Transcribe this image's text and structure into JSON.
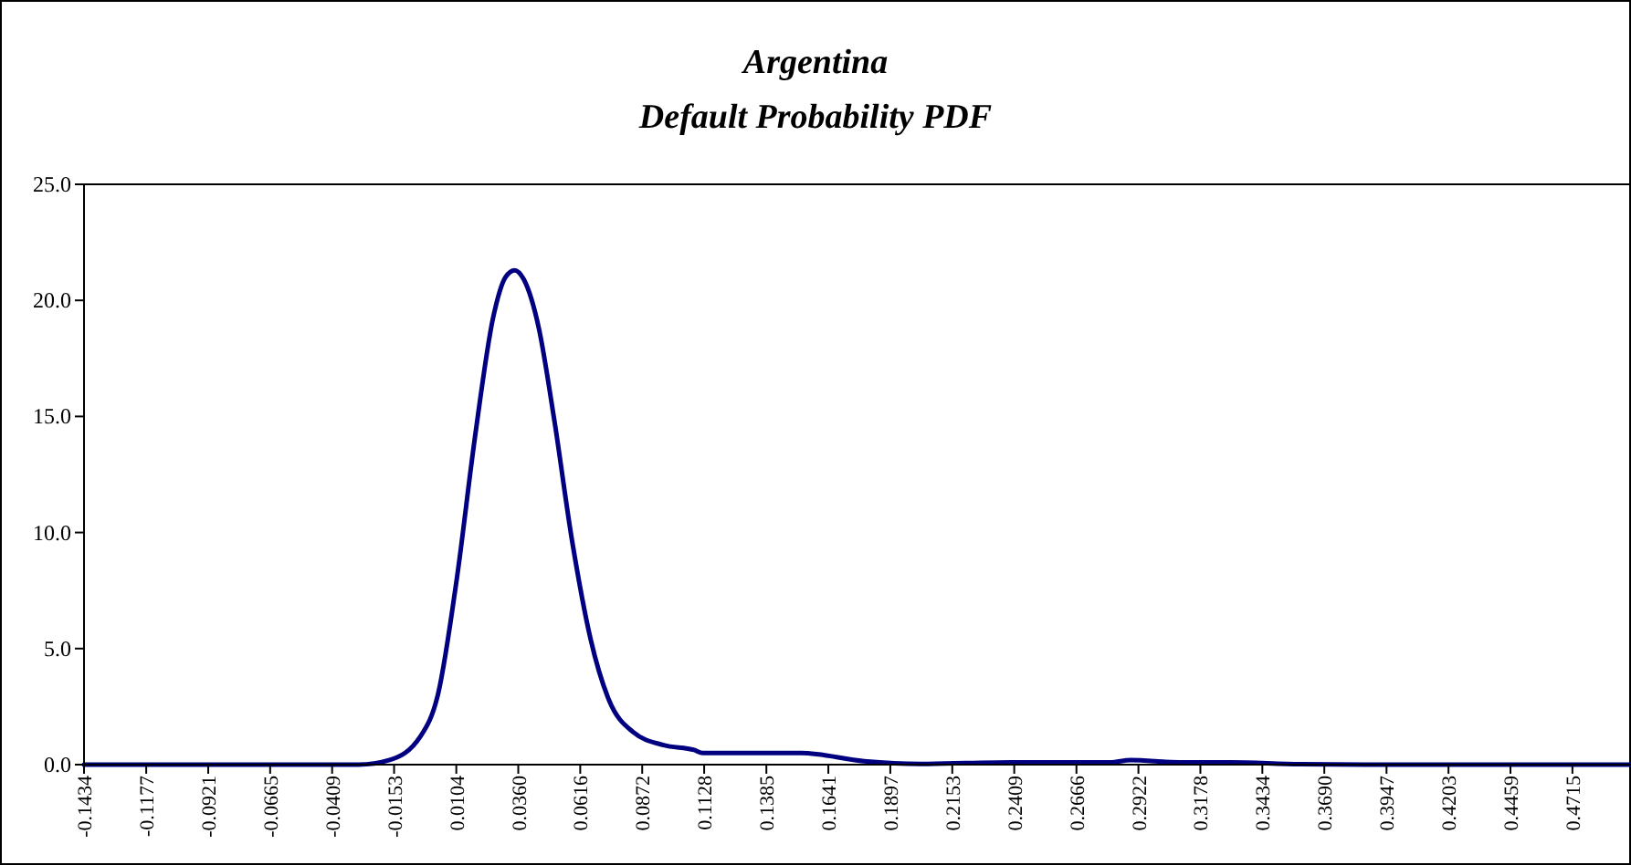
{
  "chart_data": {
    "type": "line",
    "title": "Argentina",
    "subtitle": "Default Probability PDF",
    "x": [
      -0.1434,
      -0.1,
      -0.06,
      -0.0423,
      -0.03,
      -0.0171,
      -0.0045,
      0.003,
      0.0106,
      0.0181,
      0.0257,
      0.0307,
      0.0345,
      0.0383,
      0.0445,
      0.0508,
      0.0583,
      0.0659,
      0.0734,
      0.0835,
      0.0961,
      0.1087,
      0.1122,
      0.1528,
      0.1789,
      0.2021,
      0.2398,
      0.2805,
      0.289,
      0.309,
      0.33,
      0.359,
      0.4,
      0.4957
    ],
    "series": [
      {
        "color": "#000080",
        "values": [
          0,
          0,
          0,
          0,
          0,
          0.2,
          1.2,
          3.1,
          8.0,
          14.1,
          19.3,
          21.0,
          21.3,
          20.9,
          18.8,
          14.9,
          9.6,
          5.4,
          2.8,
          1.4,
          0.84,
          0.63,
          0.5,
          0.5,
          0.15,
          0.03,
          0.1,
          0.1,
          0.2,
          0.1,
          0.1,
          0.02,
          0,
          0
        ]
      }
    ],
    "xlim": [
      -0.1434,
      0.4957
    ],
    "xticks": [
      -0.1434,
      -0.1177,
      -0.0921,
      -0.0665,
      -0.0409,
      -0.0153,
      0.0104,
      {
        "value": 0.036,
        "label": "0.0360"
      },
      0.0616,
      0.0872,
      0.1128,
      0.1385,
      0.1641,
      0.1897,
      0.2153,
      0.2409,
      0.2666,
      0.2922,
      0.3178,
      0.3434,
      {
        "value": 0.369,
        "label": "0.3690"
      },
      0.3947,
      0.4203,
      0.4459,
      0.4715
    ],
    "ylim": [
      0,
      25
    ],
    "yticks": [
      {
        "value": 0,
        "label": "0.0"
      },
      {
        "value": 5,
        "label": "5.0"
      },
      {
        "value": 10,
        "label": "10.0"
      },
      {
        "value": 15,
        "label": "15.0"
      },
      {
        "value": 20,
        "label": "20.0"
      },
      {
        "value": 25,
        "label": "25.0"
      }
    ],
    "grid": false,
    "marker": "none",
    "line_style": "solid"
  }
}
